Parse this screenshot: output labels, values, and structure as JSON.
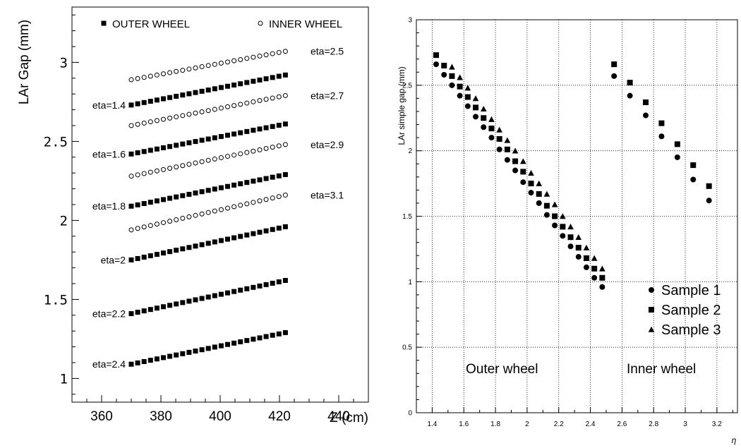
{
  "chart_data": [
    {
      "type": "scatter",
      "ylabel": "LAr Gap (mm)",
      "xlabel": "Z (cm)",
      "xlim": [
        350,
        450
      ],
      "ylim": [
        0.85,
        3.35
      ],
      "xticks": [
        "360",
        "380",
        "400",
        "420",
        "440"
      ],
      "yticks": [
        "1",
        "1.5",
        "2",
        "2.5",
        "3"
      ],
      "grid": false,
      "legend": [
        "OUTER WHEEL",
        "INNER WHEEL"
      ],
      "z_start": 370,
      "z_end": 422,
      "n_points": 25,
      "series": [
        {
          "name": "OUTER WHEEL",
          "label": "eta=1.4",
          "y_start": 2.73,
          "y_end": 2.92
        },
        {
          "name": "OUTER WHEEL",
          "label": "eta=1.6",
          "y_start": 2.42,
          "y_end": 2.61
        },
        {
          "name": "OUTER WHEEL",
          "label": "eta=1.8",
          "y_start": 2.09,
          "y_end": 2.29
        },
        {
          "name": "OUTER WHEEL",
          "label": "eta=2",
          "y_start": 1.75,
          "y_end": 1.96
        },
        {
          "name": "OUTER WHEEL",
          "label": "eta=2.2",
          "y_start": 1.41,
          "y_end": 1.62
        },
        {
          "name": "OUTER WHEEL",
          "label": "eta=2.4",
          "y_start": 1.09,
          "y_end": 1.29
        },
        {
          "name": "INNER WHEEL",
          "label": "eta=2.5",
          "y_start": 2.89,
          "y_end": 3.07
        },
        {
          "name": "INNER WHEEL",
          "label": "eta=2.7",
          "y_start": 2.6,
          "y_end": 2.79
        },
        {
          "name": "INNER WHEEL",
          "label": "eta=2.9",
          "y_start": 2.28,
          "y_end": 2.48
        },
        {
          "name": "INNER WHEEL",
          "label": "eta=3.1",
          "y_start": 1.94,
          "y_end": 2.16
        }
      ]
    },
    {
      "type": "scatter",
      "ylabel": "LAr simple gap (mm)",
      "xlabel": "η",
      "xlim": [
        1.3,
        3.33
      ],
      "ylim": [
        0,
        3
      ],
      "xticks": [
        "1.4",
        "1.6",
        "1.8",
        "2",
        "2.2",
        "2.4",
        "2.6",
        "2.8",
        "3",
        "3.2"
      ],
      "yticks": [
        "0",
        "0.5",
        "1",
        "1.5",
        "2",
        "2.5",
        "3"
      ],
      "grid": true,
      "legend_position": "bottom-right",
      "annotations": [
        "Outer wheel",
        "Inner wheel"
      ],
      "series": [
        {
          "name": "Sample 1",
          "marker": "circle",
          "x": [
            1.425,
            1.475,
            1.525,
            1.575,
            1.625,
            1.675,
            1.725,
            1.775,
            1.825,
            1.875,
            1.925,
            1.975,
            2.025,
            2.075,
            2.125,
            2.175,
            2.225,
            2.275,
            2.325,
            2.375,
            2.425,
            2.475,
            2.55,
            2.65,
            2.75,
            2.85,
            2.95,
            3.05,
            3.15
          ],
          "y": [
            2.66,
            2.58,
            2.5,
            2.42,
            2.34,
            2.26,
            2.18,
            2.1,
            2.01,
            1.93,
            1.85,
            1.76,
            1.68,
            1.6,
            1.51,
            1.43,
            1.35,
            1.27,
            1.19,
            1.11,
            1.03,
            0.96,
            2.57,
            2.42,
            2.27,
            2.11,
            1.95,
            1.78,
            1.62
          ]
        },
        {
          "name": "Sample 2",
          "marker": "square",
          "x": [
            1.425,
            1.475,
            1.525,
            1.575,
            1.625,
            1.675,
            1.725,
            1.775,
            1.825,
            1.875,
            1.925,
            1.975,
            2.025,
            2.075,
            2.125,
            2.175,
            2.225,
            2.275,
            2.325,
            2.375,
            2.425,
            2.475,
            2.55,
            2.65,
            2.75,
            2.85,
            2.95,
            3.05,
            3.15
          ],
          "y": [
            2.73,
            2.65,
            2.57,
            2.49,
            2.41,
            2.33,
            2.25,
            2.17,
            2.09,
            2.01,
            1.92,
            1.84,
            1.75,
            1.67,
            1.58,
            1.5,
            1.42,
            1.34,
            1.26,
            1.18,
            1.1,
            1.03,
            2.66,
            2.52,
            2.37,
            2.21,
            2.05,
            1.89,
            1.73
          ]
        },
        {
          "name": "Sample 3",
          "marker": "triangle",
          "x": [
            1.525,
            1.575,
            1.625,
            1.675,
            1.725,
            1.775,
            1.825,
            1.875,
            1.925,
            1.975,
            2.025,
            2.075,
            2.125,
            2.175,
            2.225,
            2.275,
            2.325,
            2.375,
            2.425,
            2.475
          ],
          "y": [
            2.64,
            2.56,
            2.48,
            2.4,
            2.32,
            2.24,
            2.16,
            2.08,
            2.0,
            1.92,
            1.83,
            1.75,
            1.67,
            1.59,
            1.5,
            1.42,
            1.34,
            1.26,
            1.18,
            1.1
          ]
        }
      ]
    }
  ]
}
